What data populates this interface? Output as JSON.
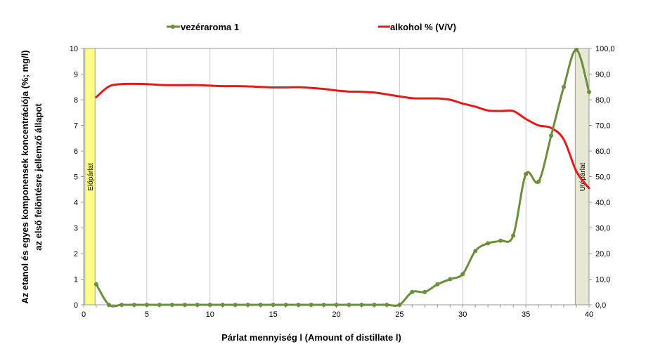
{
  "chart_data": {
    "type": "line",
    "xlabel": "Párlat mennyiség l (Amount of distillate  l)",
    "ylabel": "Az etanol és egyes komponensek koncentrációja (%; mg/l)",
    "ylabel2": "az első felöntésre jellemző állapot",
    "xlim": [
      0,
      40
    ],
    "xticks": [
      "0",
      "5",
      "10",
      "15",
      "20",
      "25",
      "30",
      "35",
      "40"
    ],
    "ylim_left": [
      0,
      10
    ],
    "yticks_left": [
      "0",
      "1",
      "2",
      "3",
      "4",
      "5",
      "6",
      "7",
      "8",
      "9",
      "10"
    ],
    "ylim_right": [
      0,
      100
    ],
    "yticks_right": [
      "0,0",
      "10,0",
      "20,0",
      "30,0",
      "40,0",
      "50,0",
      "60,0",
      "70,0",
      "80,0",
      "90,0",
      "100,0"
    ],
    "grid": "vertical",
    "legend": "top",
    "bands": [
      {
        "label": "Előpárlat",
        "x": [
          0.1,
          0.9
        ],
        "color": "#ffff88"
      },
      {
        "label": "Utópárlat",
        "x": [
          38.9,
          40
        ],
        "color": "#e6e8d4"
      }
    ],
    "series": [
      {
        "name": "vezéraroma 1",
        "axis": "left",
        "color": "#6b8e3a",
        "markers": true,
        "x": [
          1,
          2,
          3,
          4,
          5,
          6,
          7,
          8,
          9,
          10,
          11,
          12,
          13,
          14,
          15,
          16,
          17,
          18,
          19,
          20,
          21,
          22,
          23,
          24,
          25,
          26,
          27,
          28,
          29,
          30,
          31,
          32,
          33,
          34,
          35,
          36,
          37,
          38,
          39,
          40
        ],
        "values": [
          0.8,
          0,
          0,
          0,
          0,
          0,
          0,
          0,
          0,
          0,
          0,
          0,
          0,
          0,
          0,
          0,
          0,
          0,
          0,
          0,
          0,
          0,
          0,
          0,
          0,
          0.5,
          0.5,
          0.8,
          1.0,
          1.2,
          2.1,
          2.4,
          2.5,
          2.7,
          5.1,
          4.8,
          6.6,
          8.5,
          9.95,
          8.3
        ]
      },
      {
        "name": "alkohol % (V/V)",
        "axis": "right",
        "color": "#e31a1a",
        "markers": false,
        "x": [
          1,
          2,
          3,
          4,
          5,
          6,
          7,
          8,
          9,
          10,
          11,
          12,
          13,
          14,
          15,
          16,
          17,
          18,
          19,
          20,
          21,
          22,
          23,
          24,
          25,
          26,
          27,
          28,
          29,
          30,
          31,
          32,
          33,
          34,
          35,
          36,
          37,
          38,
          39,
          40
        ],
        "values": [
          81.0,
          85.2,
          86.1,
          86.2,
          86.1,
          85.8,
          85.7,
          85.7,
          85.7,
          85.5,
          85.3,
          85.3,
          85.2,
          85.0,
          84.8,
          84.8,
          84.9,
          84.6,
          84.2,
          83.6,
          83.2,
          83.1,
          82.8,
          82.1,
          81.3,
          80.6,
          80.5,
          80.5,
          80.0,
          78.5,
          77.3,
          75.8,
          75.6,
          75.6,
          72.5,
          70.0,
          69.0,
          64.5,
          52.0,
          45.5
        ]
      }
    ]
  }
}
